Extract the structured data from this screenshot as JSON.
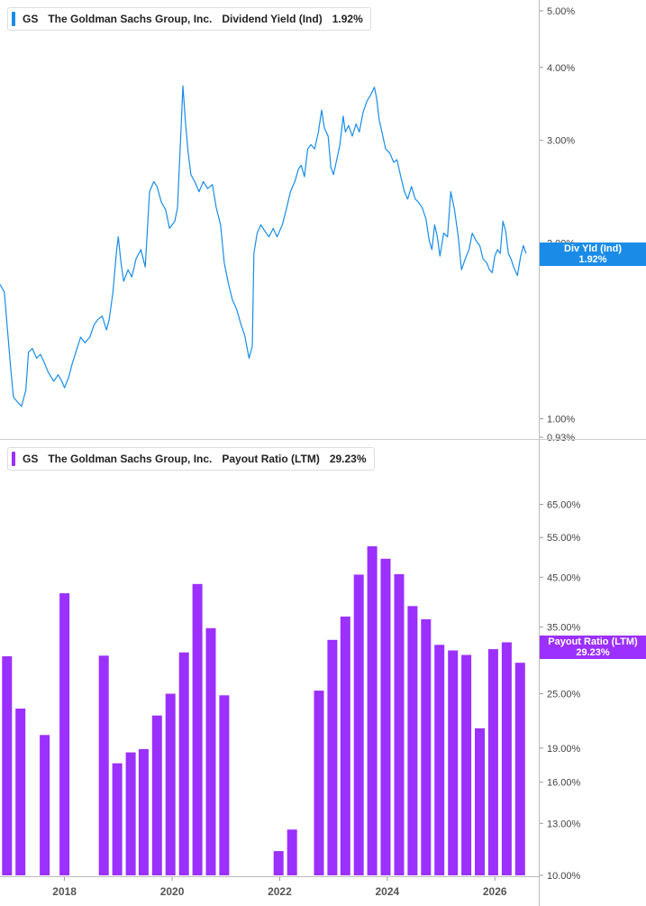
{
  "top_panel": {
    "ticker": "GS",
    "company": "The Goldman Sachs Group, Inc.",
    "metric": "Dividend Yield (Ind)",
    "value": "1.92%",
    "color": "#1a8ce8",
    "tag_label": "Div Yld (Ind)",
    "tag_value": "1.92%"
  },
  "bottom_panel": {
    "ticker": "GS",
    "company": "The Goldman Sachs Group, Inc.",
    "metric": "Payout Ratio (LTM)",
    "value": "29.23%",
    "color": "#9b30ff",
    "tag_label": "Payout Ratio (LTM)",
    "tag_value": "29.23%"
  },
  "chart_data": [
    {
      "type": "line",
      "y_scale": "log",
      "ylim": [
        0.93,
        5.0
      ],
      "xlim": [
        2016.8,
        2026.8
      ],
      "y_ticks": [
        "5.00%",
        "4.00%",
        "3.00%",
        "2.00%",
        "1.00%",
        "0.93%"
      ],
      "y_tick_values": [
        5.0,
        4.0,
        3.0,
        2.0,
        1.0,
        0.93
      ],
      "series": [
        {
          "label": "Dividend Yield (Ind)",
          "color": "#1a8ce8",
          "points": [
            [
              2016.8,
              1.7
            ],
            [
              2016.88,
              1.65
            ],
            [
              2016.95,
              1.38
            ],
            [
              2017.0,
              1.22
            ],
            [
              2017.05,
              1.09
            ],
            [
              2017.12,
              1.07
            ],
            [
              2017.2,
              1.05
            ],
            [
              2017.28,
              1.12
            ],
            [
              2017.33,
              1.3
            ],
            [
              2017.4,
              1.32
            ],
            [
              2017.48,
              1.27
            ],
            [
              2017.55,
              1.29
            ],
            [
              2017.62,
              1.25
            ],
            [
              2017.7,
              1.2
            ],
            [
              2017.8,
              1.16
            ],
            [
              2017.88,
              1.19
            ],
            [
              2017.95,
              1.16
            ],
            [
              2018.0,
              1.13
            ],
            [
              2018.08,
              1.18
            ],
            [
              2018.15,
              1.25
            ],
            [
              2018.22,
              1.31
            ],
            [
              2018.3,
              1.38
            ],
            [
              2018.38,
              1.35
            ],
            [
              2018.47,
              1.38
            ],
            [
              2018.55,
              1.45
            ],
            [
              2018.62,
              1.48
            ],
            [
              2018.7,
              1.5
            ],
            [
              2018.78,
              1.42
            ],
            [
              2018.83,
              1.48
            ],
            [
              2018.9,
              1.65
            ],
            [
              2018.97,
              1.95
            ],
            [
              2019.0,
              2.05
            ],
            [
              2019.05,
              1.85
            ],
            [
              2019.1,
              1.72
            ],
            [
              2019.18,
              1.8
            ],
            [
              2019.25,
              1.75
            ],
            [
              2019.33,
              1.88
            ],
            [
              2019.42,
              1.95
            ],
            [
              2019.5,
              1.82
            ],
            [
              2019.58,
              2.45
            ],
            [
              2019.66,
              2.55
            ],
            [
              2019.72,
              2.5
            ],
            [
              2019.8,
              2.35
            ],
            [
              2019.88,
              2.28
            ],
            [
              2019.95,
              2.12
            ],
            [
              2020.05,
              2.18
            ],
            [
              2020.1,
              2.3
            ],
            [
              2020.17,
              3.2
            ],
            [
              2020.2,
              3.72
            ],
            [
              2020.25,
              3.2
            ],
            [
              2020.3,
              2.85
            ],
            [
              2020.35,
              2.62
            ],
            [
              2020.42,
              2.55
            ],
            [
              2020.5,
              2.45
            ],
            [
              2020.58,
              2.55
            ],
            [
              2020.66,
              2.48
            ],
            [
              2020.75,
              2.52
            ],
            [
              2020.82,
              2.3
            ],
            [
              2020.9,
              2.15
            ],
            [
              2020.97,
              1.85
            ],
            [
              2021.05,
              1.7
            ],
            [
              2021.12,
              1.6
            ],
            [
              2021.2,
              1.54
            ],
            [
              2021.28,
              1.45
            ],
            [
              2021.35,
              1.39
            ],
            [
              2021.43,
              1.27
            ],
            [
              2021.49,
              1.33
            ],
            [
              2021.52,
              1.92
            ],
            [
              2021.58,
              2.08
            ],
            [
              2021.65,
              2.15
            ],
            [
              2021.72,
              2.1
            ],
            [
              2021.8,
              2.05
            ],
            [
              2021.88,
              2.12
            ],
            [
              2021.95,
              2.05
            ],
            [
              2022.05,
              2.15
            ],
            [
              2022.12,
              2.28
            ],
            [
              2022.2,
              2.45
            ],
            [
              2022.28,
              2.55
            ],
            [
              2022.35,
              2.68
            ],
            [
              2022.4,
              2.72
            ],
            [
              2022.46,
              2.6
            ],
            [
              2022.52,
              2.9
            ],
            [
              2022.58,
              2.95
            ],
            [
              2022.65,
              2.9
            ],
            [
              2022.72,
              3.1
            ],
            [
              2022.78,
              3.38
            ],
            [
              2022.83,
              3.15
            ],
            [
              2022.9,
              3.05
            ],
            [
              2022.95,
              2.7
            ],
            [
              2023.0,
              2.62
            ],
            [
              2023.05,
              2.75
            ],
            [
              2023.12,
              2.95
            ],
            [
              2023.18,
              3.3
            ],
            [
              2023.22,
              3.1
            ],
            [
              2023.28,
              3.18
            ],
            [
              2023.35,
              3.05
            ],
            [
              2023.42,
              3.2
            ],
            [
              2023.48,
              3.1
            ],
            [
              2023.55,
              3.35
            ],
            [
              2023.62,
              3.5
            ],
            [
              2023.7,
              3.6
            ],
            [
              2023.76,
              3.7
            ],
            [
              2023.8,
              3.55
            ],
            [
              2023.85,
              3.25
            ],
            [
              2023.9,
              3.1
            ],
            [
              2023.97,
              2.9
            ],
            [
              2024.05,
              2.85
            ],
            [
              2024.12,
              2.75
            ],
            [
              2024.18,
              2.78
            ],
            [
              2024.25,
              2.6
            ],
            [
              2024.32,
              2.45
            ],
            [
              2024.38,
              2.38
            ],
            [
              2024.45,
              2.5
            ],
            [
              2024.52,
              2.38
            ],
            [
              2024.58,
              2.35
            ],
            [
              2024.65,
              2.3
            ],
            [
              2024.72,
              2.2
            ],
            [
              2024.78,
              2.02
            ],
            [
              2024.83,
              1.95
            ],
            [
              2024.88,
              2.15
            ],
            [
              2024.93,
              2.05
            ],
            [
              2024.98,
              1.9
            ],
            [
              2025.05,
              2.08
            ],
            [
              2025.12,
              2.05
            ],
            [
              2025.18,
              2.45
            ],
            [
              2025.25,
              2.28
            ],
            [
              2025.32,
              2.05
            ],
            [
              2025.38,
              1.8
            ],
            [
              2025.45,
              1.88
            ],
            [
              2025.52,
              1.95
            ],
            [
              2025.58,
              2.08
            ],
            [
              2025.65,
              2.02
            ],
            [
              2025.72,
              1.98
            ],
            [
              2025.78,
              1.88
            ],
            [
              2025.85,
              1.85
            ],
            [
              2025.9,
              1.8
            ],
            [
              2025.95,
              1.78
            ],
            [
              2026.0,
              1.9
            ],
            [
              2026.05,
              1.95
            ],
            [
              2026.1,
              1.92
            ],
            [
              2026.15,
              2.18
            ],
            [
              2026.2,
              2.1
            ],
            [
              2026.25,
              1.92
            ],
            [
              2026.3,
              1.88
            ],
            [
              2026.35,
              1.82
            ],
            [
              2026.42,
              1.76
            ],
            [
              2026.48,
              1.9
            ],
            [
              2026.53,
              1.98
            ],
            [
              2026.58,
              1.92
            ]
          ]
        }
      ]
    },
    {
      "type": "bar",
      "y_scale": "log",
      "ylim": [
        10.0,
        75.0
      ],
      "xlim": [
        2016.8,
        2026.8
      ],
      "y_ticks": [
        "65.00%",
        "55.00%",
        "45.00%",
        "35.00%",
        "25.00%",
        "19.00%",
        "16.00%",
        "13.00%",
        "10.00%"
      ],
      "y_tick_values": [
        65,
        55,
        45,
        35,
        25,
        19,
        16,
        13,
        10
      ],
      "x_ticks": [
        "2018",
        "2020",
        "2022",
        "2024",
        "2026"
      ],
      "x_tick_values": [
        2018,
        2020,
        2022,
        2024,
        2026
      ],
      "series": [
        {
          "label": "Payout Ratio (LTM)",
          "color": "#9b30ff",
          "points": [
            [
              2016.93,
              30.2
            ],
            [
              2017.18,
              23.2
            ],
            [
              2017.63,
              20.3
            ],
            [
              2018.0,
              41.5
            ],
            [
              2018.73,
              30.3
            ],
            [
              2018.98,
              17.6
            ],
            [
              2019.23,
              18.6
            ],
            [
              2019.47,
              18.9
            ],
            [
              2019.72,
              22.4
            ],
            [
              2019.97,
              25.0
            ],
            [
              2020.22,
              30.8
            ],
            [
              2020.47,
              43.5
            ],
            [
              2020.72,
              34.8
            ],
            [
              2020.97,
              24.8
            ],
            [
              2021.98,
              11.3
            ],
            [
              2022.23,
              12.6
            ],
            [
              2022.73,
              25.4
            ],
            [
              2022.98,
              32.8
            ],
            [
              2023.22,
              36.9
            ],
            [
              2023.47,
              45.6
            ],
            [
              2023.72,
              52.6
            ],
            [
              2023.97,
              49.4
            ],
            [
              2024.22,
              45.7
            ],
            [
              2024.47,
              38.9
            ],
            [
              2024.72,
              36.4
            ],
            [
              2024.97,
              32.0
            ],
            [
              2025.22,
              31.1
            ],
            [
              2025.47,
              30.4
            ],
            [
              2025.72,
              21.0
            ],
            [
              2025.97,
              31.3
            ],
            [
              2026.22,
              32.4
            ],
            [
              2026.47,
              29.23
            ]
          ]
        }
      ]
    }
  ]
}
